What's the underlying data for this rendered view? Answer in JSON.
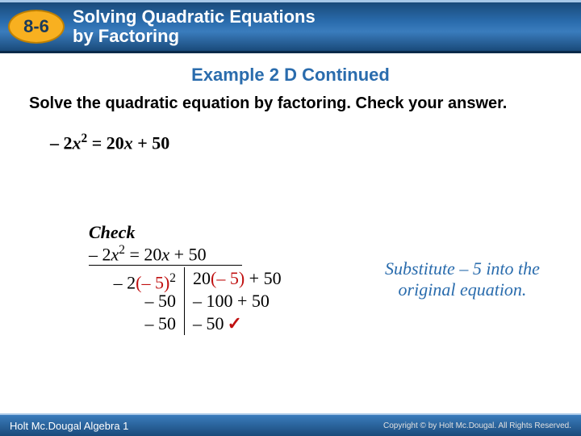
{
  "header": {
    "lesson_number": "8-6",
    "title_line1": "Solving Quadratic Equations",
    "title_line2": "by Factoring",
    "badge_bg": "#f8b020",
    "badge_border": "#c08000",
    "bar_gradient_top": "#1a4a7a",
    "bar_gradient_mid": "#3a7cbd"
  },
  "example_heading": "Example 2 D Continued",
  "instruction": "Solve the quadratic equation by factoring. Check your answer.",
  "main_equation": {
    "lhs_prefix": "– 2",
    "lhs_var": "x",
    "lhs_exp": "2",
    "eq": " = 20",
    "rhs_var": "x",
    "rhs_suffix": " + 50"
  },
  "check": {
    "label": "Check",
    "eq_lhs_coef": "– 2",
    "eq_lhs_var": "x",
    "eq_lhs_exp": "2",
    "eq_eqsign": " = 20",
    "eq_rhs_var": "x",
    "eq_rhs_tail": " + 50",
    "rows_left": [
      "– 2(– 5)²",
      "– 50",
      "– 50"
    ],
    "rows_right": [
      "20(– 5) + 50",
      "– 100 + 50",
      "– 50"
    ],
    "left_r0_a": "– 2",
    "left_r0_b": "(– 5)",
    "left_r0_c": "2",
    "left_r1": "– 50",
    "left_r2": "– 50",
    "right_r0_a": "20",
    "right_r0_b": "(– 5)",
    "right_r0_c": " + 50",
    "right_r1": "– 100 + 50",
    "right_r2": "– 50",
    "checkmark": "✓",
    "sub_color": "#c01010"
  },
  "note": "Substitute – 5 into the original equation.",
  "footer": {
    "left": "Holt Mc.Dougal Algebra 1",
    "right": "Copyright © by Holt Mc.Dougal. All Rights Reserved."
  },
  "colors": {
    "heading_blue": "#2a6cad",
    "note_blue": "#2a6cad",
    "background": "#ffffff"
  }
}
